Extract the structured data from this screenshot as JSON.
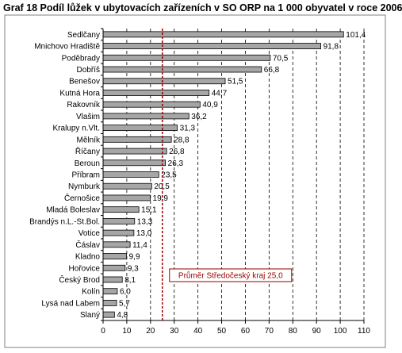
{
  "chart_data": {
    "type": "bar",
    "orientation": "horizontal",
    "title": "Graf 18 Podíl lůžek v ubytovacích zařízeních v SO ORP na 1 000 obyvatel v roce 2006",
    "categories": [
      "Sedlčany",
      "Mnichovo Hradiště",
      "Poděbrady",
      "Dobříš",
      "Benešov",
      "Kutná Hora",
      "Rakovník",
      "Vlašim",
      "Kralupy n.Vlt.",
      "Mělník",
      "Říčany",
      "Beroun",
      "Příbram",
      "Nymburk",
      "Černošice",
      "Mladá Boleslav",
      "Brandýs n.L.-St.Bol.",
      "Votice",
      "Čáslav",
      "Kladno",
      "Hořovice",
      "Český Brod",
      "Kolín",
      "Lysá nad Labem",
      "Slaný"
    ],
    "values": [
      101.4,
      91.8,
      70.5,
      66.8,
      51.5,
      44.7,
      40.9,
      36.2,
      31.3,
      28.8,
      26.8,
      26.3,
      23.5,
      20.5,
      19.9,
      15.1,
      13.3,
      13.0,
      11.4,
      9.9,
      9.3,
      8.1,
      6.0,
      5.7,
      4.8
    ],
    "value_labels": [
      "101,4",
      "91,8",
      "70,5",
      "66,8",
      "51,5",
      "44,7",
      "40,9",
      "36,2",
      "31,3",
      "28,8",
      "26,8",
      "26,3",
      "23,5",
      "20,5",
      "19,9",
      "15,1",
      "13,3",
      "13,0",
      "11,4",
      "9,9",
      "9,3",
      "8,1",
      "6,0",
      "5,7",
      "4,8"
    ],
    "xlim": [
      0,
      110
    ],
    "xticks": [
      0,
      10,
      20,
      30,
      40,
      50,
      60,
      70,
      80,
      90,
      100,
      110
    ],
    "grid": "vertical dashed",
    "reference_line": {
      "value": 25.0,
      "label": "Průměr Středočeský kraj 25,0"
    },
    "colors": {
      "bar": "#a6a6a6",
      "bar_border": "#000000",
      "reference": "#990000",
      "frame": "#808080"
    }
  }
}
